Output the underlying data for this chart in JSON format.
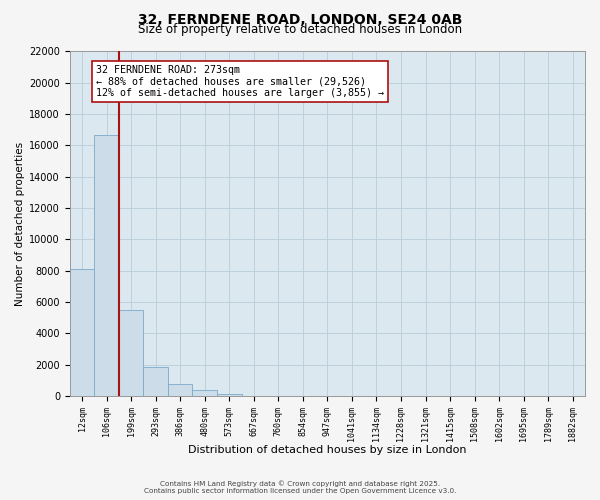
{
  "title": "32, FERNDENE ROAD, LONDON, SE24 0AB",
  "subtitle": "Size of property relative to detached houses in London",
  "xlabel": "Distribution of detached houses by size in London",
  "ylabel": "Number of detached properties",
  "bin_labels": [
    "12sqm",
    "106sqm",
    "199sqm",
    "293sqm",
    "386sqm",
    "480sqm",
    "573sqm",
    "667sqm",
    "760sqm",
    "854sqm",
    "947sqm",
    "1041sqm",
    "1134sqm",
    "1228sqm",
    "1321sqm",
    "1415sqm",
    "1508sqm",
    "1602sqm",
    "1695sqm",
    "1789sqm",
    "1882sqm"
  ],
  "bar_heights": [
    8100,
    16700,
    5500,
    1850,
    750,
    400,
    150,
    0,
    0,
    0,
    0,
    0,
    0,
    0,
    0,
    0,
    0,
    0,
    0,
    0,
    0
  ],
  "bar_color": "#ccdce8",
  "bar_edge_color": "#7aaac8",
  "vline_color": "#aa1111",
  "annotation_title": "32 FERNDENE ROAD: 273sqm",
  "annotation_line1": "← 88% of detached houses are smaller (29,526)",
  "annotation_line2": "12% of semi-detached houses are larger (3,855) →",
  "annotation_box_facecolor": "#ffffff",
  "annotation_box_edgecolor": "#aa1111",
  "ylim_max": 22000,
  "yticks": [
    0,
    2000,
    4000,
    6000,
    8000,
    10000,
    12000,
    14000,
    16000,
    18000,
    20000,
    22000
  ],
  "footer1": "Contains HM Land Registry data © Crown copyright and database right 2025.",
  "footer2": "Contains public sector information licensed under the Open Government Licence v3.0.",
  "fig_facecolor": "#f5f5f5",
  "plot_facecolor": "#dce8f0",
  "grid_color": "#b8ccd8"
}
